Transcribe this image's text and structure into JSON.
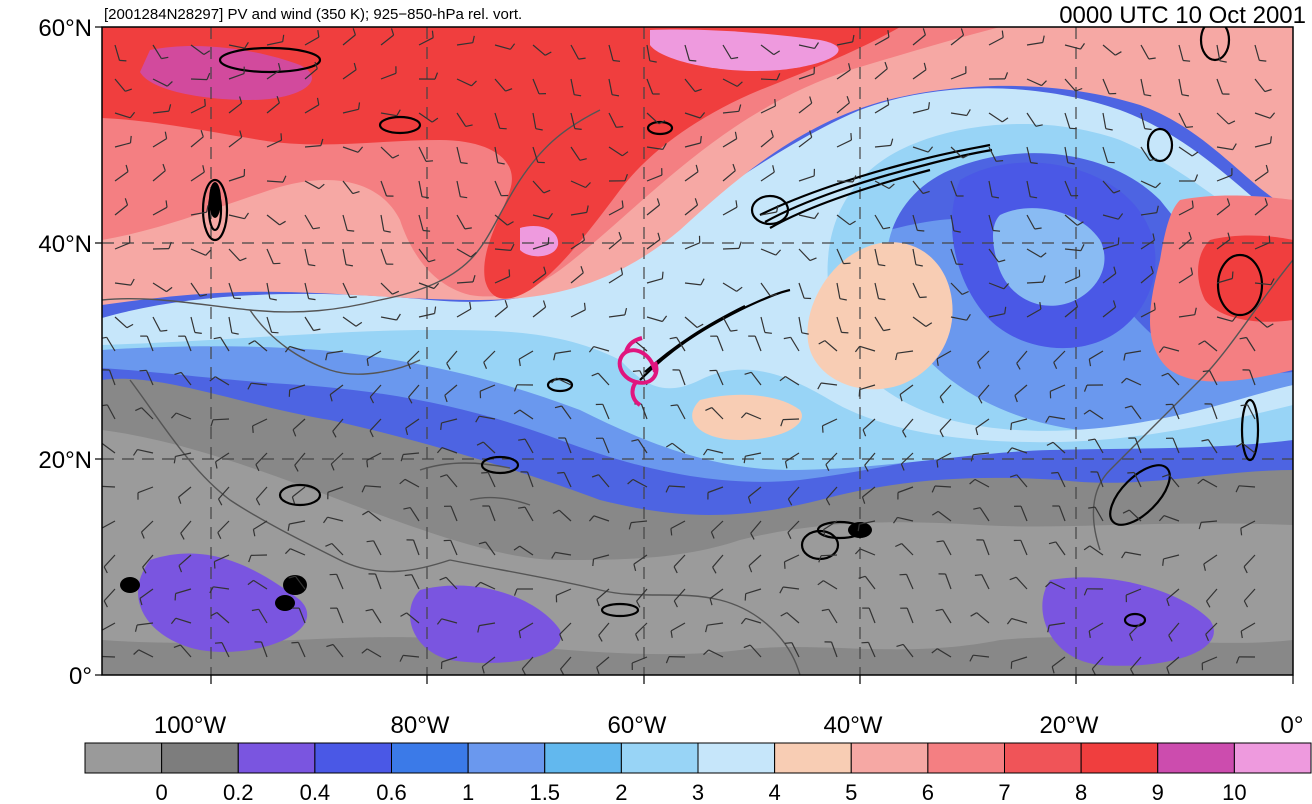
{
  "header": {
    "left_title": "[2001284N28297] PV and wind (350 K); 925−850-hPa rel. vort.",
    "right_title": "0000 UTC 10 Oct 2001"
  },
  "axes": {
    "lat_labels": [
      "60°N",
      "40°N",
      "20°N",
      "0°"
    ],
    "lon_labels": [
      "100°W",
      "80°W",
      "60°W",
      "40°W",
      "20°W",
      "0°"
    ]
  },
  "colorbar": {
    "colors": [
      "#9a9a9a",
      "#7d7d7d",
      "#7a55e0",
      "#4a58e6",
      "#3b7ae8",
      "#6a98ee",
      "#62b8ee",
      "#98d4f6",
      "#c6e6fa",
      "#f8cdb4",
      "#f6a8a4",
      "#f47f82",
      "#f05458",
      "#f03e3e",
      "#cc4cae",
      "#ee9ade"
    ],
    "labels": [
      "0",
      "0.2",
      "0.4",
      "0.6",
      "1",
      "1.5",
      "2",
      "3",
      "4",
      "5",
      "6",
      "7",
      "8",
      "9",
      "10"
    ]
  },
  "storm_marker": {
    "color": "#e0157e",
    "icon": "tropical-cyclone-symbol"
  }
}
